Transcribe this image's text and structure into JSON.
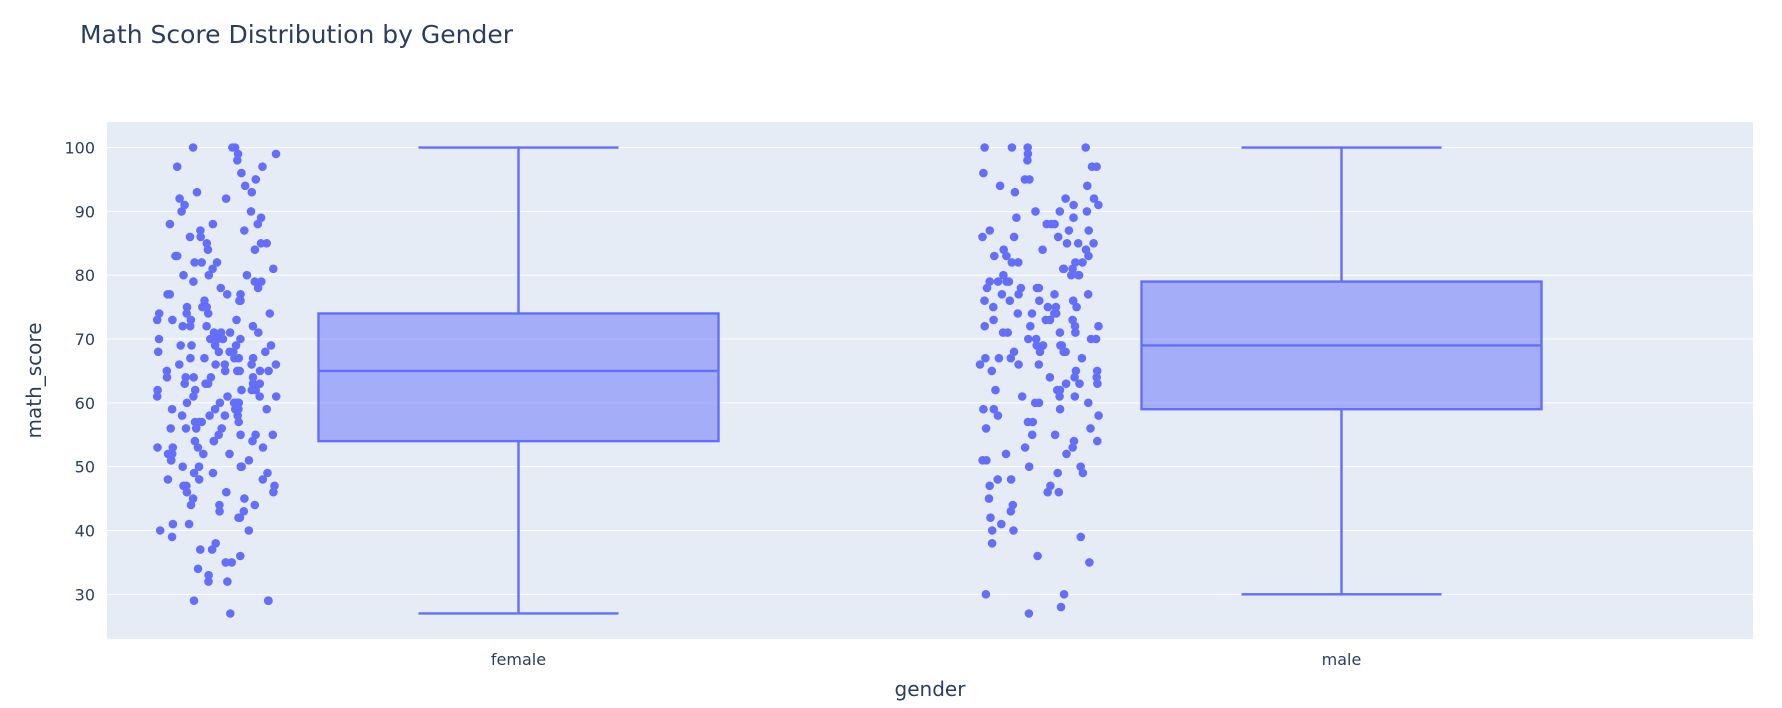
{
  "chart_data": {
    "type": "box",
    "title": "Math Score Distribution by Gender",
    "xlabel": "gender",
    "ylabel": "math_score",
    "categories": [
      "female",
      "male"
    ],
    "y_ticks": [
      30,
      40,
      50,
      60,
      70,
      80,
      90,
      100
    ],
    "ylim": [
      23,
      104
    ],
    "grid": true,
    "points_shown": "all",
    "boxes": [
      {
        "category": "female",
        "min": 27,
        "q1": 54,
        "median": 65,
        "q3": 74,
        "max": 100
      },
      {
        "category": "male",
        "min": 30,
        "q1": 59,
        "median": 69,
        "q3": 79,
        "max": 100
      }
    ],
    "points": {
      "female": [
        100,
        100,
        100,
        99,
        99,
        98,
        97,
        97,
        96,
        95,
        94,
        93,
        93,
        92,
        92,
        91,
        90,
        90,
        89,
        88,
        88,
        88,
        87,
        87,
        86,
        86,
        85,
        85,
        85,
        84,
        84,
        83,
        83,
        82,
        82,
        82,
        81,
        81,
        80,
        80,
        80,
        79,
        79,
        79,
        78,
        78,
        77,
        77,
        77,
        77,
        76,
        76,
        76,
        75,
        75,
        75,
        75,
        74,
        74,
        74,
        74,
        73,
        73,
        73,
        73,
        72,
        72,
        72,
        72,
        71,
        71,
        71,
        71,
        70,
        70,
        70,
        70,
        70,
        69,
        69,
        69,
        69,
        69,
        68,
        68,
        68,
        68,
        68,
        67,
        67,
        67,
        67,
        67,
        66,
        66,
        66,
        66,
        66,
        65,
        65,
        65,
        65,
        65,
        65,
        64,
        64,
        64,
        64,
        64,
        63,
        63,
        63,
        63,
        63,
        62,
        62,
        62,
        62,
        62,
        61,
        61,
        61,
        61,
        61,
        60,
        60,
        60,
        60,
        60,
        59,
        59,
        59,
        59,
        59,
        58,
        58,
        58,
        58,
        57,
        57,
        57,
        57,
        56,
        56,
        56,
        56,
        55,
        55,
        55,
        55,
        54,
        54,
        54,
        54,
        53,
        53,
        53,
        53,
        52,
        52,
        52,
        52,
        51,
        51,
        51,
        50,
        50,
        50,
        50,
        49,
        49,
        49,
        48,
        48,
        48,
        47,
        47,
        47,
        46,
        46,
        46,
        45,
        45,
        44,
        44,
        44,
        43,
        43,
        42,
        42,
        41,
        41,
        40,
        40,
        39,
        38,
        37,
        37,
        36,
        35,
        35,
        34,
        33,
        32,
        32,
        29,
        29,
        29,
        27
      ],
      "male": [
        100,
        100,
        100,
        100,
        99,
        98,
        97,
        97,
        96,
        95,
        95,
        94,
        94,
        93,
        92,
        92,
        91,
        91,
        90,
        90,
        90,
        89,
        89,
        88,
        88,
        88,
        87,
        87,
        87,
        86,
        86,
        86,
        85,
        85,
        85,
        84,
        84,
        84,
        83,
        83,
        83,
        82,
        82,
        82,
        82,
        81,
        81,
        81,
        80,
        80,
        80,
        80,
        79,
        79,
        79,
        79,
        78,
        78,
        78,
        78,
        77,
        77,
        77,
        77,
        76,
        76,
        76,
        76,
        75,
        75,
        75,
        75,
        74,
        74,
        74,
        74,
        73,
        73,
        73,
        73,
        72,
        72,
        72,
        72,
        71,
        71,
        71,
        71,
        70,
        70,
        70,
        70,
        69,
        69,
        69,
        69,
        68,
        68,
        68,
        68,
        67,
        67,
        67,
        67,
        66,
        66,
        66,
        65,
        65,
        65,
        64,
        64,
        64,
        63,
        63,
        63,
        62,
        62,
        62,
        61,
        61,
        61,
        60,
        60,
        60,
        59,
        59,
        59,
        58,
        58,
        57,
        57,
        56,
        56,
        55,
        55,
        54,
        54,
        53,
        53,
        52,
        52,
        51,
        51,
        50,
        50,
        49,
        49,
        48,
        48,
        47,
        47,
        46,
        46,
        45,
        44,
        43,
        42,
        41,
        40,
        40,
        39,
        38,
        36,
        35,
        30,
        30,
        28,
        27
      ]
    },
    "colors": {
      "marker": "#636efa",
      "box_fill": "rgba(99,110,250,0.5)",
      "plot_bg": "#e5ecf6",
      "grid": "#ffffff",
      "text": "#2a3f5f"
    }
  }
}
